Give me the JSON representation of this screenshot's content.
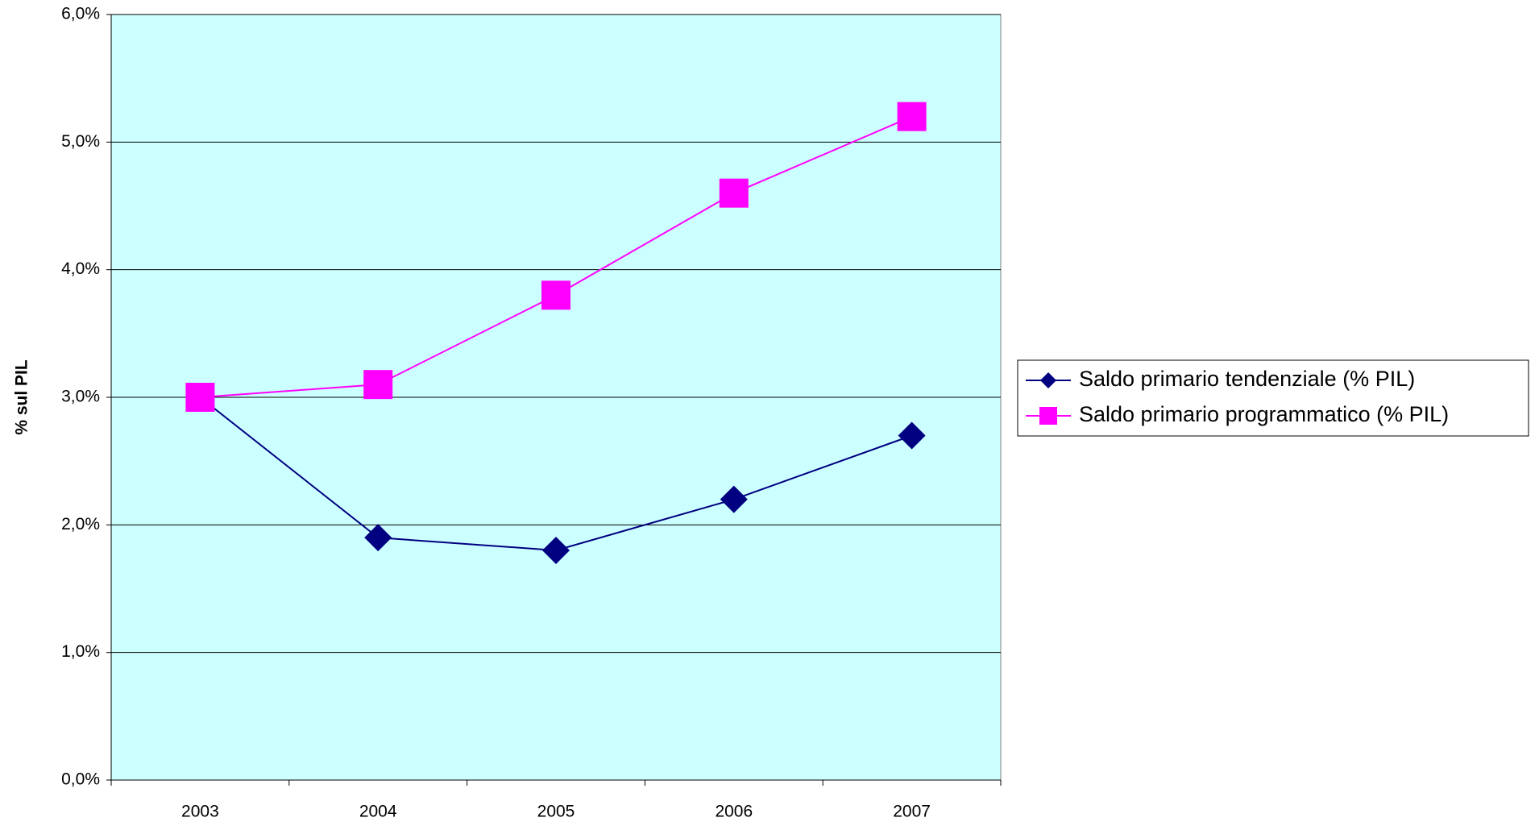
{
  "chart_data": {
    "type": "line",
    "y_label": "% sul PIL",
    "categories": [
      "2003",
      "2004",
      "2005",
      "2006",
      "2007"
    ],
    "series": [
      {
        "name": "Saldo primario tendenziale (% PIL)",
        "color": "#000080",
        "marker": "diamond",
        "values": [
          3.0,
          1.9,
          1.8,
          2.2,
          2.7
        ]
      },
      {
        "name": "Saldo primario programmatico (% PIL)",
        "color": "#ff00ff",
        "marker": "square",
        "values": [
          3.0,
          3.1,
          3.8,
          4.6,
          5.2
        ]
      }
    ],
    "ylim": [
      0,
      6
    ],
    "yticks": [
      {
        "value": 0,
        "label": "0,0%"
      },
      {
        "value": 1,
        "label": "1,0%"
      },
      {
        "value": 2,
        "label": "2,0%"
      },
      {
        "value": 3,
        "label": "3,0%"
      },
      {
        "value": 4,
        "label": "4,0%"
      },
      {
        "value": 5,
        "label": "5,0%"
      },
      {
        "value": 6,
        "label": "6,0%"
      }
    ],
    "grid": true,
    "plot_background": "#ccffff",
    "legend": "right"
  }
}
